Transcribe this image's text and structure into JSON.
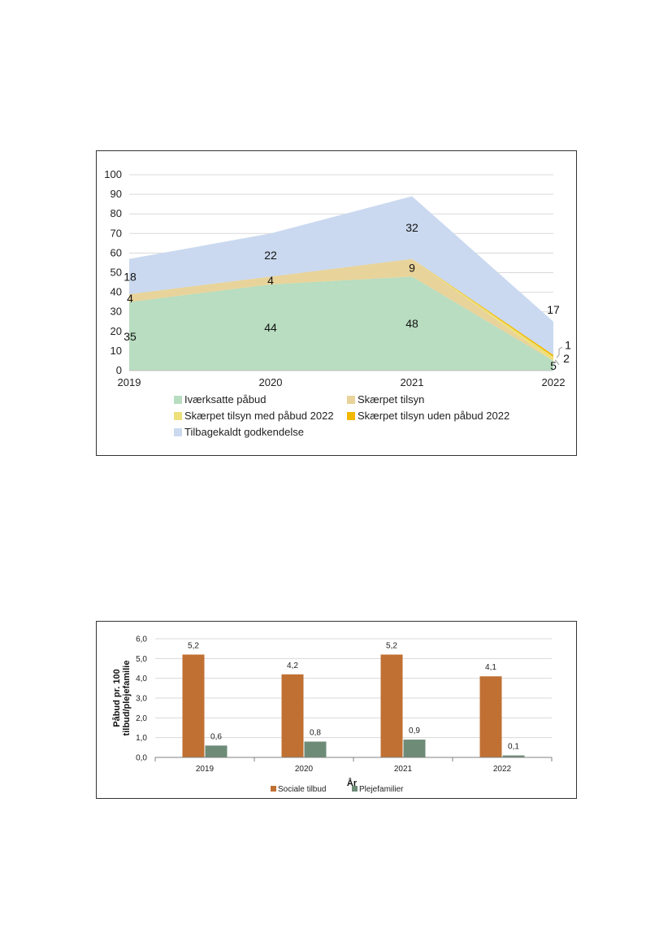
{
  "charts": {
    "area": {
      "type": "area",
      "stacked": true,
      "x": [
        "2019",
        "2020",
        "2021",
        "2022"
      ],
      "ylim": [
        0,
        100
      ],
      "yticks": [
        "0",
        "10",
        "20",
        "30",
        "40",
        "50",
        "60",
        "70",
        "80",
        "90",
        "100"
      ],
      "grid": true,
      "legend_position": "bottom",
      "series": [
        {
          "name": "Iværksatte påbud",
          "color": "#b8ddc0",
          "values": [
            35,
            44,
            48,
            5
          ],
          "labels": [
            "35",
            "44",
            "48",
            "5"
          ]
        },
        {
          "name": "Skærpet tilsyn",
          "color": "#e8d39a",
          "values": [
            4,
            4,
            9,
            0
          ],
          "labels": [
            "4",
            "4",
            "9",
            ""
          ]
        },
        {
          "name": "Skærpet tilsyn med påbud 2022",
          "color": "#ede07a",
          "values": [
            0,
            0,
            0,
            2
          ],
          "labels": [
            "",
            "",
            "",
            "2"
          ]
        },
        {
          "name": "Skærpet tilsyn uden påbud 2022",
          "color": "#f2b800",
          "values": [
            0,
            0,
            0,
            1
          ],
          "labels": [
            "",
            "",
            "",
            "1"
          ]
        },
        {
          "name": "Tilbagekaldt godkendelse",
          "color": "#cad9ef",
          "values": [
            18,
            22,
            32,
            17
          ],
          "labels": [
            "18",
            "22",
            "32",
            "17"
          ]
        }
      ]
    },
    "bar": {
      "type": "bar",
      "categories": [
        "2019",
        "2020",
        "2021",
        "2022"
      ],
      "xlabel": "År",
      "ylabel": "Påbud pr. 100 tilbud/plejefamilie",
      "ylabel_lines": [
        "Påbud pr. 100",
        "tilbud/plejefamilie"
      ],
      "ylim": [
        0,
        6
      ],
      "yticks": [
        "0,0",
        "1,0",
        "2,0",
        "3,0",
        "4,0",
        "5,0",
        "6,0"
      ],
      "grid": true,
      "legend_position": "bottom",
      "series": [
        {
          "name": "Sociale tilbud",
          "color": "#c07033",
          "values": [
            5.2,
            4.2,
            5.2,
            4.1
          ],
          "labels": [
            "5,2",
            "4,2",
            "5,2",
            "4,1"
          ]
        },
        {
          "name": "Plejefamilier",
          "color": "#6e8b78",
          "values": [
            0.6,
            0.8,
            0.9,
            0.1
          ],
          "labels": [
            "0,6",
            "0,8",
            "0,9",
            "0,1"
          ]
        }
      ]
    }
  }
}
